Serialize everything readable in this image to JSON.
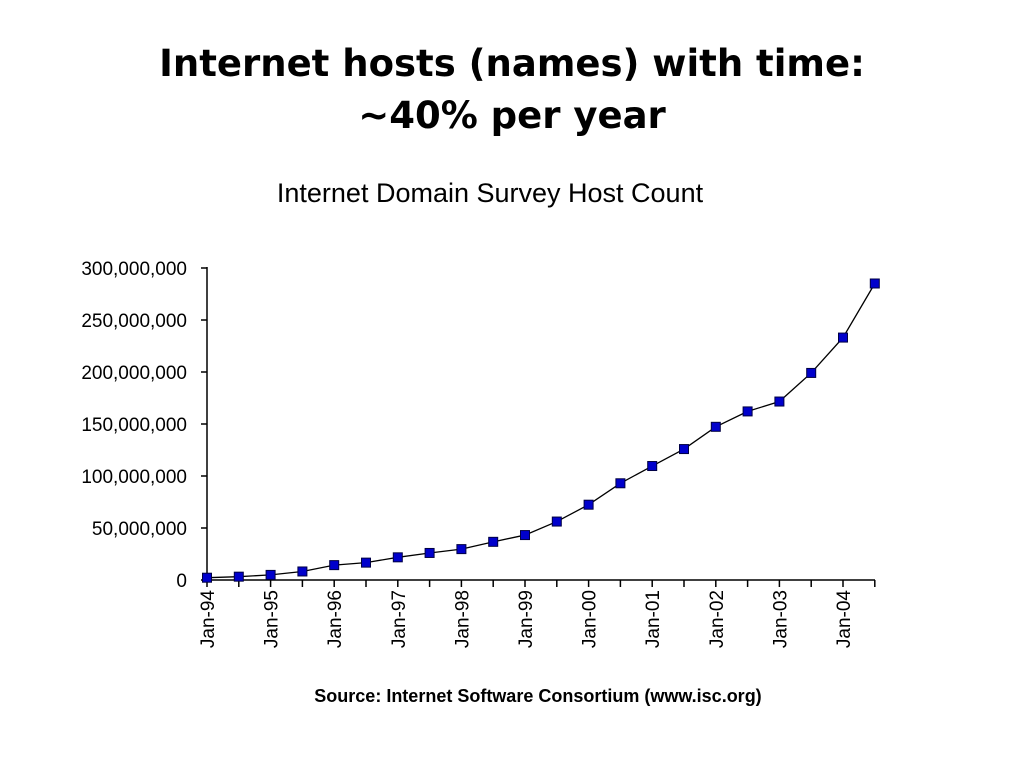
{
  "slide": {
    "title_line1": "Internet hosts (names) with time:",
    "title_line2": "~40% per year"
  },
  "chart_data": {
    "type": "line",
    "title": "Internet Domain Survey Host Count",
    "source": "Source: Internet Software Consortium (www.isc.org)",
    "xlabel": "",
    "ylabel": "",
    "ylim": [
      0,
      300000000
    ],
    "yticks": [
      0,
      50000000,
      100000000,
      150000000,
      200000000,
      250000000,
      300000000
    ],
    "ytick_labels": [
      "0",
      "50,000,000",
      "100,000,000",
      "150,000,000",
      "200,000,000",
      "250,000,000",
      "300,000,000"
    ],
    "xtick_labels": [
      "Jan-94",
      "Jan-95",
      "Jan-96",
      "Jan-97",
      "Jan-98",
      "Jan-99",
      "Jan-00",
      "Jan-01",
      "Jan-02",
      "Jan-03",
      "Jan-04"
    ],
    "x": [
      "Jan-94",
      "Jul-94",
      "Jan-95",
      "Jul-95",
      "Jan-96",
      "Jul-96",
      "Jan-97",
      "Jul-97",
      "Jan-98",
      "Jul-98",
      "Jan-99",
      "Jul-99",
      "Jan-00",
      "Jul-00",
      "Jan-01",
      "Jul-01",
      "Jan-02",
      "Jul-02",
      "Jan-03",
      "Jul-03",
      "Jan-04",
      "Jul-04"
    ],
    "values": [
      2200000,
      3200000,
      4900000,
      8200000,
      14300000,
      16700000,
      21800000,
      26000000,
      29700000,
      36700000,
      43200000,
      56200000,
      72400000,
      93000000,
      109600000,
      125900000,
      147300000,
      162100000,
      171600000,
      199100000,
      233100000,
      285100000
    ],
    "legend": "none",
    "grid": false,
    "colors": {
      "marker_fill": "#0000cc",
      "marker_stroke": "#000044",
      "line": "#000000",
      "axis": "#000000"
    }
  }
}
